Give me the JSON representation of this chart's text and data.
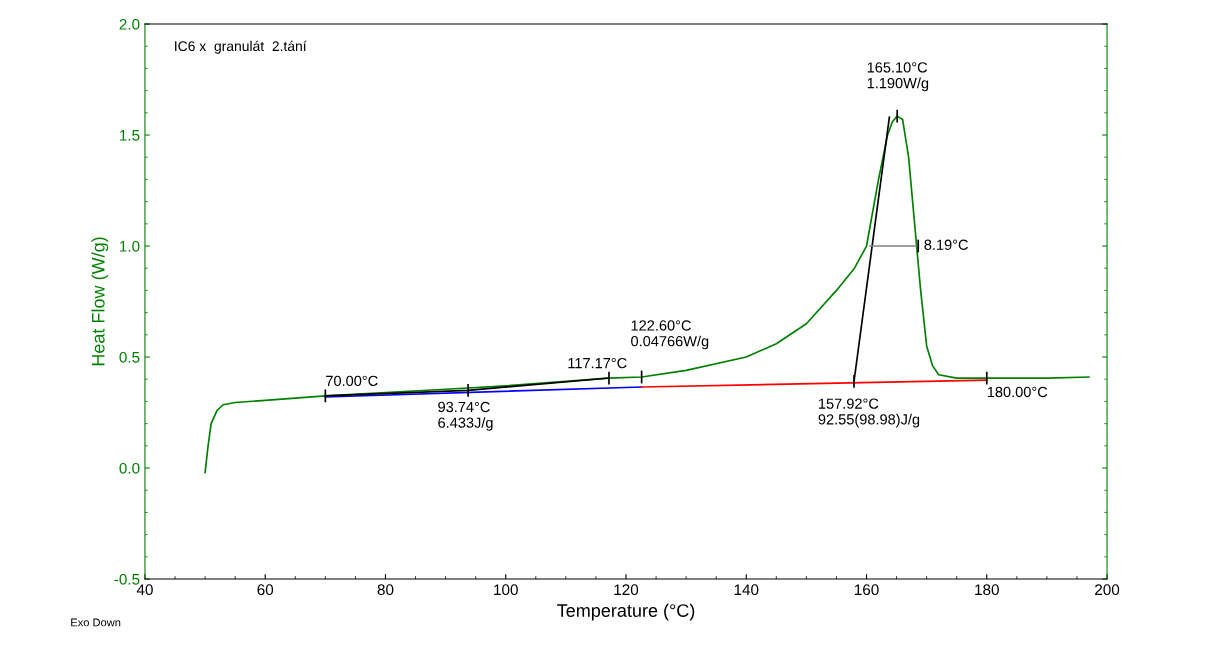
{
  "chart_data": {
    "type": "line",
    "title": "IC6 x  granulát  2.tání",
    "xlabel": "Temperature (°C)",
    "ylabel": "Heat Flow (W/g)",
    "xlim": [
      40,
      200
    ],
    "xticks": [
      40,
      60,
      80,
      100,
      120,
      140,
      160,
      180,
      200
    ],
    "ylim": [
      -0.5,
      2.0
    ],
    "yticks": [
      {
        "value": -0.5,
        "label": "-0.5"
      },
      {
        "value": 0,
        "label": "0.0"
      },
      {
        "value": 0.5,
        "label": "0.5"
      },
      {
        "value": 1,
        "label": "1.0"
      },
      {
        "value": 1.5,
        "label": "1.5"
      },
      {
        "value": 2,
        "label": "2.0"
      }
    ],
    "grid": false,
    "legend": false,
    "series": [
      {
        "color": "#008000",
        "x": [
          50,
          50.5,
          51,
          52,
          53,
          55,
          60,
          70,
          80,
          90,
          100,
          110,
          117,
          122.6,
          130,
          140,
          145,
          150,
          155,
          158,
          160,
          162,
          163.5,
          164.3,
          165.1,
          166,
          167,
          168,
          169,
          170,
          171,
          172,
          175,
          180,
          190,
          197
        ],
        "values": [
          -0.02,
          0.1,
          0.2,
          0.26,
          0.285,
          0.295,
          0.305,
          0.325,
          0.34,
          0.355,
          0.37,
          0.39,
          0.405,
          0.41,
          0.44,
          0.5,
          0.56,
          0.65,
          0.8,
          0.9,
          1.0,
          1.3,
          1.5,
          1.56,
          1.585,
          1.57,
          1.4,
          1.1,
          0.8,
          0.55,
          0.46,
          0.42,
          0.405,
          0.405,
          0.405,
          0.41
        ]
      },
      {
        "color": "#0000ff",
        "x": [
          70,
          122.6
        ],
        "values": [
          0.32,
          0.365
        ]
      },
      {
        "color": "#ff0000",
        "x": [
          122.6,
          180
        ],
        "values": [
          0.365,
          0.396
        ]
      },
      {
        "color": "#000000",
        "x": [
          70,
          93.74,
          117.17
        ],
        "values": [
          0.325,
          0.35,
          0.405
        ]
      },
      {
        "color": "#000000",
        "x": [
          157.92,
          163.8
        ],
        "values": [
          0.39,
          1.58
        ]
      },
      {
        "color": "#808080",
        "x": [
          160.6,
          168.6
        ],
        "values": [
          1.0,
          1.0
        ]
      }
    ],
    "annotations": [
      {
        "text": "70.00°C",
        "x": 70,
        "y": 0.325
      },
      {
        "text": "93.74°C\n6.433J/g",
        "x": 93.74,
        "y": 0.35
      },
      {
        "text": "117.17°C",
        "x": 117.17,
        "y": 0.405
      },
      {
        "text": "122.60°C\n0.04766W/g",
        "x": 122.6,
        "y": 0.41
      },
      {
        "text": "157.92°C\n92.55(98.98)J/g",
        "x": 157.92,
        "y": 0.39
      },
      {
        "text": "165.10°C\n1.190W/g",
        "x": 165.1,
        "y": 1.585
      },
      {
        "text": "8.19°C",
        "x": 168.6,
        "y": 1.0
      },
      {
        "text": "180.00°C",
        "x": 180,
        "y": 0.405
      },
      "Exo Down"
    ]
  }
}
